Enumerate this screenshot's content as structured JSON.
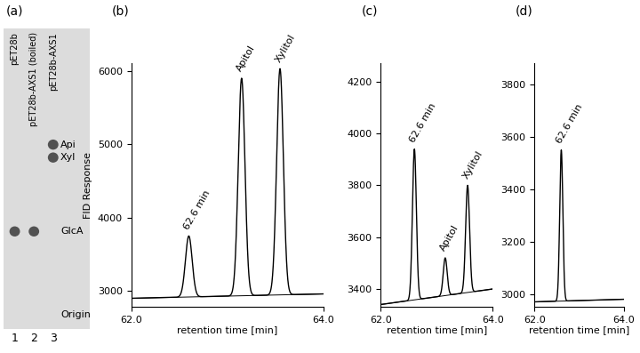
{
  "chart_data": [
    {
      "type": "tlc",
      "title": "(a)",
      "standards": [
        {
          "label": "Api",
          "rf": 0.92
        },
        {
          "label": "Xyl",
          "rf": 0.85
        },
        {
          "label": "GlcA",
          "rf": 0.45
        },
        {
          "label": "Origin",
          "rf": 0.0
        }
      ],
      "lanes": [
        {
          "number": 1,
          "name": "pET28b",
          "spots": [
            "GlcA"
          ]
        },
        {
          "number": 2,
          "name": "pET28b-AXS1 (boiled)",
          "spots": [
            "GlcA"
          ]
        },
        {
          "number": 3,
          "name": "pET28b-AXS1",
          "spots": [
            "Api",
            "Xyl"
          ]
        }
      ]
    },
    {
      "type": "chromatogram",
      "title": "(b)",
      "x_label": "retention time [min]",
      "y_label": "FID Response",
      "xlim": [
        62.0,
        64.0
      ],
      "xticks": [
        {
          "value": 62.0,
          "label": "62.0"
        },
        {
          "value": 64.0,
          "label": "64.0"
        }
      ],
      "ylim": [
        2780,
        6100
      ],
      "yticks": [
        3000,
        4000,
        5000,
        6000
      ],
      "baseline": [
        2900,
        2960
      ],
      "peaks": [
        {
          "x": 62.6,
          "height": 3750,
          "label": "62.6 min"
        },
        {
          "x": 63.15,
          "height": 5900,
          "label": "Apitol"
        },
        {
          "x": 63.55,
          "height": 6030,
          "label": "Xylitol"
        }
      ]
    },
    {
      "type": "chromatogram",
      "title": "(c)",
      "x_label": "retention time [min]",
      "xlim": [
        62.0,
        64.0
      ],
      "xticks": [
        {
          "value": 62.0,
          "label": "62.0"
        },
        {
          "value": 64.0,
          "label": "64.0"
        }
      ],
      "ylim": [
        3330,
        4270
      ],
      "yticks": [
        3400,
        3600,
        3800,
        4000,
        4200
      ],
      "baseline": [
        3340,
        3400
      ],
      "peaks": [
        {
          "x": 62.6,
          "height": 3940,
          "label": "62.6 min"
        },
        {
          "x": 63.15,
          "height": 3520,
          "label": "Apitol"
        },
        {
          "x": 63.55,
          "height": 3800,
          "label": "Xylitol"
        }
      ]
    },
    {
      "type": "chromatogram",
      "title": "(d)",
      "x_label": "retention time [min]",
      "xlim": [
        62.0,
        64.0
      ],
      "xticks": [
        {
          "value": 62.0,
          "label": "62.0"
        },
        {
          "value": 64.0,
          "label": "64.0"
        }
      ],
      "ylim": [
        2950,
        3880
      ],
      "yticks": [
        3000,
        3200,
        3400,
        3600,
        3800
      ],
      "baseline": [
        2970,
        2980
      ],
      "peaks": [
        {
          "x": 62.6,
          "height": 3550,
          "label": "62.6 min"
        }
      ]
    }
  ]
}
